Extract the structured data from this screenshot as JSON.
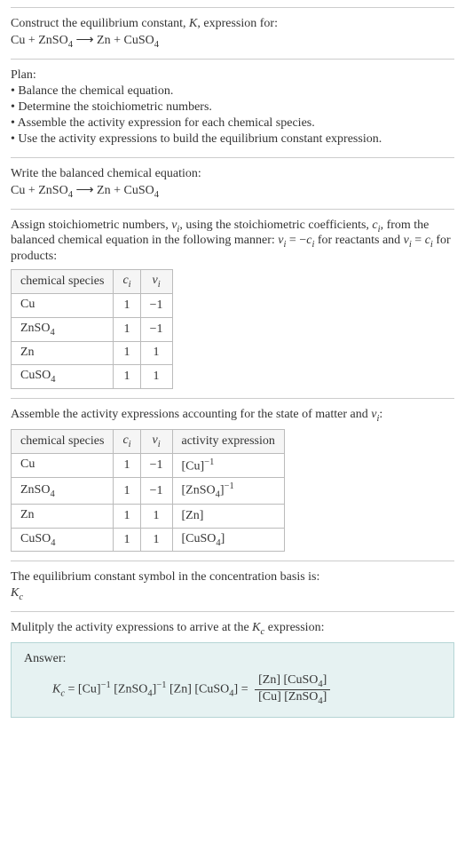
{
  "intro": {
    "line1_pre": "Construct the equilibrium constant, ",
    "line1_k": "K",
    "line1_post": ", expression for:",
    "eq_lhs1": "Cu",
    "eq_plus1": " + ",
    "eq_lhs2": "ZnSO",
    "eq_lhs2_sub": "4",
    "arrow": " ⟶ ",
    "eq_rhs1": "Zn",
    "eq_plus2": " + ",
    "eq_rhs2": "CuSO",
    "eq_rhs2_sub": "4"
  },
  "plan": {
    "heading": "Plan:",
    "items": [
      "• Balance the chemical equation.",
      "• Determine the stoichiometric numbers.",
      "• Assemble the activity expression for each chemical species.",
      "• Use the activity expressions to build the equilibrium constant expression."
    ]
  },
  "balance": {
    "heading": "Write the balanced chemical equation:"
  },
  "stoich": {
    "line1_a": "Assign stoichiometric numbers, ",
    "line1_nu": "ν",
    "line1_i": "i",
    "line1_b": ", using the stoichiometric coefficients, ",
    "line1_c": "c",
    "line1_ci": "i",
    "line1_d": ", from",
    "line2_a": "the balanced chemical equation in the following manner: ",
    "line2_eq1a": "ν",
    "line2_eq1b": "i",
    "line2_eq1c": " = −",
    "line2_eq1d": "c",
    "line2_eq1e": "i",
    "line2_b": " for reactants",
    "line3_a": "and ",
    "line3_eq2a": "ν",
    "line3_eq2b": "i",
    "line3_eq2c": " = ",
    "line3_eq2d": "c",
    "line3_eq2e": "i",
    "line3_b": " for products:",
    "th1": "chemical species",
    "th2a": "c",
    "th2b": "i",
    "th3a": "ν",
    "th3b": "i",
    "rows": [
      {
        "sp_a": "Cu",
        "sp_b": "",
        "c": "1",
        "nu": "−1"
      },
      {
        "sp_a": "ZnSO",
        "sp_b": "4",
        "c": "1",
        "nu": "−1"
      },
      {
        "sp_a": "Zn",
        "sp_b": "",
        "c": "1",
        "nu": "1"
      },
      {
        "sp_a": "CuSO",
        "sp_b": "4",
        "c": "1",
        "nu": "1"
      }
    ]
  },
  "activity": {
    "line_a": "Assemble the activity expressions accounting for the state of matter and ",
    "line_nu": "ν",
    "line_i": "i",
    "line_b": ":",
    "th1": "chemical species",
    "th2a": "c",
    "th2b": "i",
    "th3a": "ν",
    "th3b": "i",
    "th4": "activity expression",
    "rows": [
      {
        "sp_a": "Cu",
        "sp_b": "",
        "c": "1",
        "nu": "−1",
        "ae_a": "[Cu]",
        "ae_sup": "−1",
        "ae_b": "",
        "ae_bsub": ""
      },
      {
        "sp_a": "ZnSO",
        "sp_b": "4",
        "c": "1",
        "nu": "−1",
        "ae_a": "[ZnSO",
        "ae_asub": "4",
        "ae_mid": "]",
        "ae_sup": "−1"
      },
      {
        "sp_a": "Zn",
        "sp_b": "",
        "c": "1",
        "nu": "1",
        "ae_a": "[Zn]",
        "ae_sup": ""
      },
      {
        "sp_a": "CuSO",
        "sp_b": "4",
        "c": "1",
        "nu": "1",
        "ae_a": "[CuSO",
        "ae_asub": "4",
        "ae_mid": "]",
        "ae_sup": ""
      }
    ]
  },
  "symbol": {
    "line": "The equilibrium constant symbol in the concentration basis is:",
    "Kc_a": "K",
    "Kc_b": "c"
  },
  "multiply": {
    "line_a": "Mulitply the activity expressions to arrive at the ",
    "Kc_a": "K",
    "Kc_b": "c",
    "line_b": " expression:"
  },
  "answer": {
    "label": "Answer:",
    "lhs_a": "K",
    "lhs_b": "c",
    "eq": " = ",
    "t1": "[Cu]",
    "t1sup": "−1",
    "t2a": " [ZnSO",
    "t2sub": "4",
    "t2b": "]",
    "t2sup": "−1",
    "t3": " [Zn] ",
    "t4a": "[CuSO",
    "t4sub": "4",
    "t4b": "]",
    "eq2": " = ",
    "num_a": "[Zn] [CuSO",
    "num_sub": "4",
    "num_b": "]",
    "den_a": "[Cu] [ZnSO",
    "den_sub": "4",
    "den_b": "]"
  }
}
